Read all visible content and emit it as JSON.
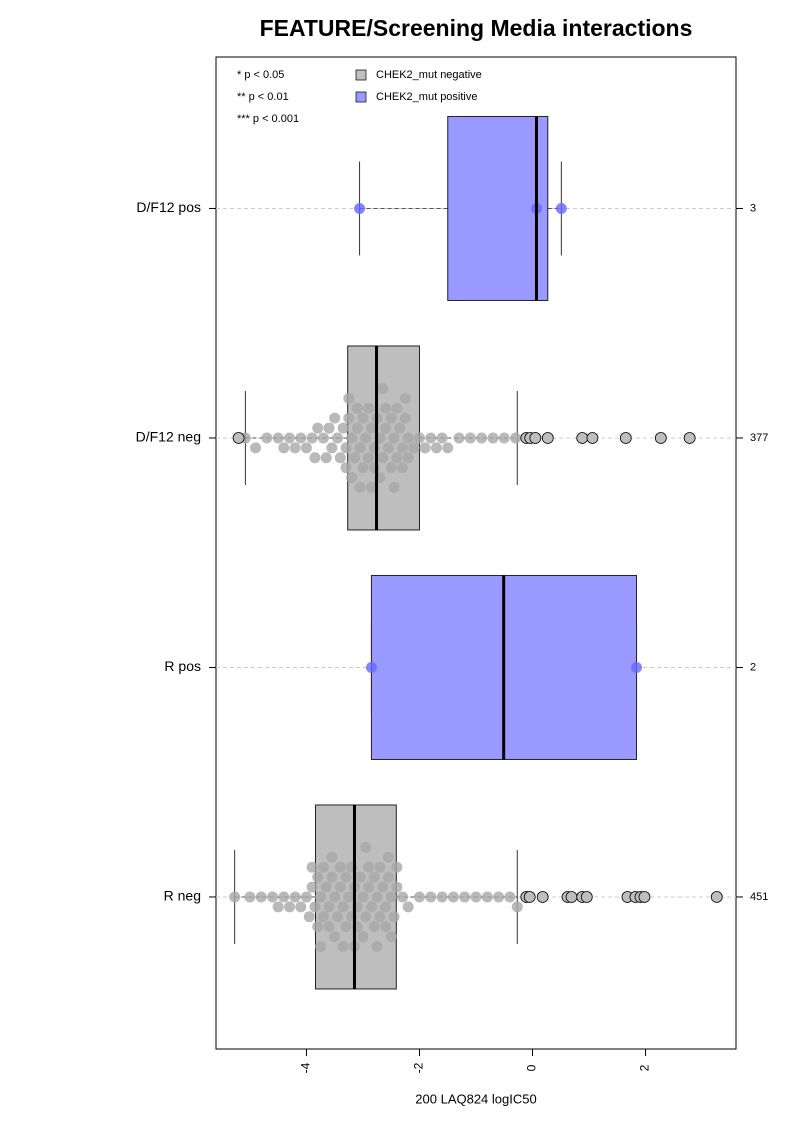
{
  "chart_data": {
    "type": "box",
    "title": "FEATURE/Screening Media interactions",
    "xlabel": "200 LAQ824 logIC50",
    "xlim": [
      -5.6,
      3.6
    ],
    "xticks": [
      -4,
      -2,
      0,
      2
    ],
    "categories": [
      "D/F12 pos",
      "D/F12 neg",
      "R pos",
      "R neg"
    ],
    "counts": [
      3,
      377,
      2,
      451
    ],
    "notes": [
      "* p < 0.05",
      "** p < 0.01",
      "*** p < 0.001"
    ],
    "grid": true,
    "series": [
      {
        "name": "CHEK2_mut negative",
        "color": "#bebebe",
        "point_color": "#a8a8a8",
        "boxes": [
          null,
          {
            "q1": -3.27,
            "median": -2.76,
            "q3": -2.0,
            "whisker_low": -5.08,
            "whisker_high": -0.27,
            "points": [
              -5.08,
              -4.9,
              -4.7,
              -4.5,
              -4.4,
              -4.3,
              -4.2,
              -4.1,
              -4.0,
              -3.9,
              -3.85,
              -3.8,
              -3.7,
              -3.65,
              -3.6,
              -3.55,
              -3.5,
              -3.45,
              -3.4,
              -3.35,
              -3.3,
              -3.25,
              -3.2,
              -3.15,
              -3.1,
              -3.05,
              -3.0,
              -2.95,
              -2.9,
              -2.85,
              -2.8,
              -2.75,
              -2.7,
              -2.65,
              -2.6,
              -2.55,
              -2.5,
              -2.45,
              -2.4,
              -2.35,
              -2.3,
              -2.25,
              -2.2,
              -2.1,
              -2.0,
              -1.9,
              -1.8,
              -1.7,
              -1.6,
              -1.5,
              -1.3,
              -1.1,
              -0.9,
              -0.7,
              -0.5,
              -0.3,
              -3.3,
              -3.2,
              -3.1,
              -3.0,
              -2.9,
              -2.8,
              -2.7,
              -2.6,
              -2.5,
              -2.4,
              -2.3,
              -2.2,
              -3.25,
              -3.05,
              -2.85,
              -2.65,
              -2.45,
              -2.25
            ],
            "outliers": [
              -5.2,
              -0.11,
              -0.04,
              0.05,
              0.27,
              0.88,
              1.06,
              1.65,
              2.27,
              2.78
            ]
          },
          null,
          {
            "q1": -3.84,
            "median": -3.15,
            "q3": -2.41,
            "whisker_low": -5.27,
            "whisker_high": -0.27,
            "points": [
              -5.27,
              -5.0,
              -4.8,
              -4.6,
              -4.5,
              -4.4,
              -4.3,
              -4.2,
              -4.1,
              -4.0,
              -3.95,
              -3.9,
              -3.85,
              -3.8,
              -3.75,
              -3.7,
              -3.65,
              -3.6,
              -3.55,
              -3.5,
              -3.45,
              -3.4,
              -3.35,
              -3.3,
              -3.25,
              -3.2,
              -3.15,
              -3.1,
              -3.05,
              -3.0,
              -2.95,
              -2.9,
              -2.85,
              -2.8,
              -2.75,
              -2.7,
              -2.65,
              -2.6,
              -2.55,
              -2.5,
              -2.45,
              -2.4,
              -2.3,
              -2.2,
              -2.0,
              -1.8,
              -1.6,
              -1.4,
              -1.2,
              -1.0,
              -0.8,
              -0.6,
              -0.4,
              -0.27,
              -3.9,
              -3.8,
              -3.7,
              -3.6,
              -3.5,
              -3.4,
              -3.3,
              -3.2,
              -3.1,
              -3.0,
              -2.9,
              -2.8,
              -2.7,
              -2.6,
              -2.5,
              -2.4,
              -3.75,
              -3.55,
              -3.35,
              -3.15,
              -2.95,
              -2.75,
              -2.55
            ],
            "outliers": [
              -0.11,
              -0.05,
              0.18,
              0.62,
              0.69,
              0.88,
              0.96,
              1.68,
              1.82,
              1.91,
              1.98,
              3.26
            ]
          }
        ]
      },
      {
        "name": "CHEK2_mut positive",
        "color": "#9999ff",
        "point_color": "#6666ff",
        "boxes": [
          {
            "q1": -1.5,
            "median": 0.07,
            "q3": 0.27,
            "whisker_low": -3.06,
            "whisker_high": 0.51,
            "points": [
              -3.06,
              0.07,
              0.51
            ],
            "outliers": []
          },
          null,
          {
            "q1": -2.85,
            "median": -0.51,
            "q3": 1.84,
            "whisker_low": -2.85,
            "whisker_high": 1.84,
            "points": [
              -2.85,
              1.84
            ],
            "outliers": []
          },
          null
        ]
      }
    ]
  }
}
